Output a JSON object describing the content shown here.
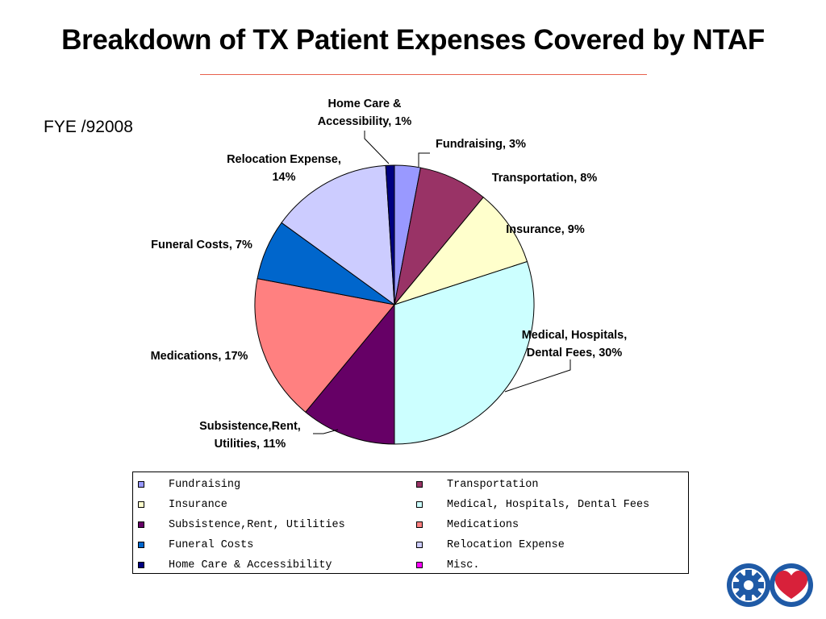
{
  "title": "Breakdown of TX Patient Expenses Covered by NTAF",
  "subtitle": "FYE /92008",
  "chart_data": {
    "type": "pie",
    "title": "Breakdown of TX Patient Expenses Covered by NTAF",
    "subtitle": "FYE /92008",
    "legend_position": "bottom",
    "slices": [
      {
        "name": "Fundraising",
        "value": 3,
        "color": "#9999ff",
        "label_lines": [
          "Fundraising, 3%"
        ]
      },
      {
        "name": "Transportation",
        "value": 8,
        "color": "#993366",
        "label_lines": [
          "Transportation, 8%"
        ]
      },
      {
        "name": "Insurance",
        "value": 9,
        "color": "#ffffcc",
        "label_lines": [
          "Insurance, 9%"
        ]
      },
      {
        "name": "Medical, Hospitals, Dental Fees",
        "value": 30,
        "color": "#ccffff",
        "label_lines": [
          "Medical, Hospitals,",
          "Dental Fees, 30%"
        ]
      },
      {
        "name": "Subsistence,Rent, Utilities",
        "value": 11,
        "color": "#660066",
        "label_lines": [
          "Subsistence,Rent,",
          "Utilities, 11%"
        ]
      },
      {
        "name": "Medications",
        "value": 17,
        "color": "#ff8080",
        "label_lines": [
          "Medications, 17%"
        ]
      },
      {
        "name": "Funeral Costs",
        "value": 7,
        "color": "#0066cc",
        "label_lines": [
          "Funeral Costs, 7%"
        ]
      },
      {
        "name": "Relocation Expense",
        "value": 14,
        "color": "#ccccff",
        "label_lines": [
          "Relocation Expense,",
          "14%"
        ]
      },
      {
        "name": "Home Care & Accessibility",
        "value": 1,
        "color": "#000080",
        "label_lines": [
          "Home Care &",
          "Accessibility, 1%"
        ]
      }
    ],
    "legend": [
      {
        "label": "Fundraising",
        "color": "#9999ff"
      },
      {
        "label": "Transportation",
        "color": "#993366"
      },
      {
        "label": "Insurance",
        "color": "#ffffcc"
      },
      {
        "label": "Medical, Hospitals, Dental Fees",
        "color": "#ccffff"
      },
      {
        "label": "Subsistence,Rent, Utilities",
        "color": "#660066"
      },
      {
        "label": "Medications",
        "color": "#ff8080"
      },
      {
        "label": "Funeral Costs",
        "color": "#0066cc"
      },
      {
        "label": "Relocation Expense",
        "color": "#ccccff"
      },
      {
        "label": "Home Care & Accessibility",
        "color": "#000080"
      },
      {
        "label": "Misc.",
        "color": "#ff00ff"
      }
    ]
  },
  "logo": {
    "icons": [
      "gear-icon",
      "heart-icon"
    ],
    "colors": {
      "blue": "#1f5aa6",
      "red": "#d8213a"
    }
  }
}
